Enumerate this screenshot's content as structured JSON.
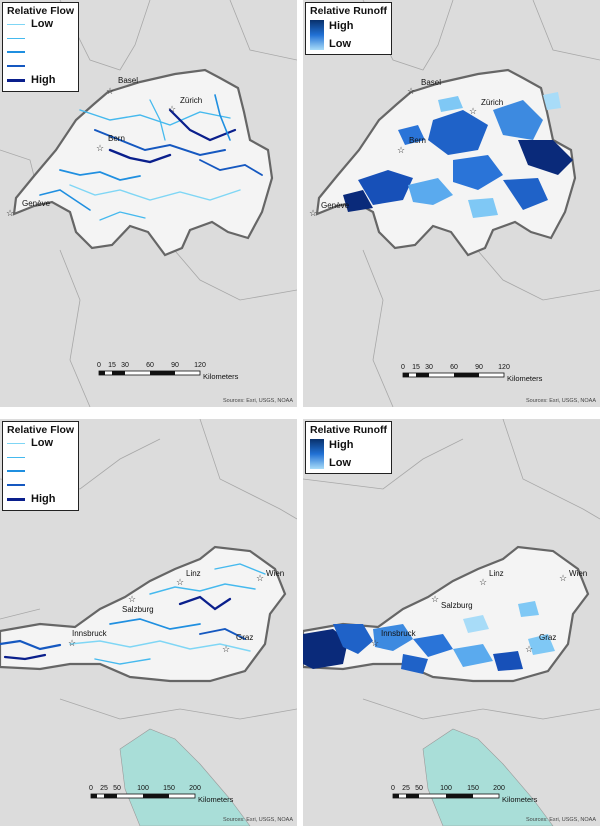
{
  "panels": {
    "ch_flow": {
      "legend_title": "Relative Flow",
      "legend_items": [
        "Low",
        "",
        "",
        "",
        "High"
      ],
      "legend_colors": [
        "#7fd6f5",
        "#45b9ee",
        "#1f8fe0",
        "#1558c0",
        "#0a1f8c"
      ],
      "cities": [
        "Basel",
        "Zürich",
        "Bern",
        "Genève"
      ],
      "scale_ticks": [
        "0",
        "15",
        "30",
        "60",
        "90",
        "120"
      ],
      "scale_unit": "Kilometers",
      "sources": "Sources: Esri, USGS, NOAA"
    },
    "ch_runoff": {
      "legend_title": "Relative Runoff",
      "legend_high": "High",
      "legend_low": "Low",
      "cities": [
        "Basel",
        "Zürich",
        "Bern",
        "Genève"
      ],
      "scale_ticks": [
        "0",
        "15",
        "30",
        "60",
        "90",
        "120"
      ],
      "scale_unit": "Kilometers",
      "sources": "Sources: Esri, USGS, NOAA"
    },
    "at_flow": {
      "legend_title": "Relative Flow",
      "legend_items": [
        "Low",
        "",
        "",
        "",
        "High"
      ],
      "legend_colors": [
        "#7fd6f5",
        "#45b9ee",
        "#1f8fe0",
        "#1558c0",
        "#0a1f8c"
      ],
      "cities": [
        "Linz",
        "Wien",
        "Salzburg",
        "Innsbruck",
        "Graz"
      ],
      "scale_ticks": [
        "0",
        "25",
        "50",
        "100",
        "150",
        "200"
      ],
      "scale_unit": "Kilometers",
      "sources": "Sources: Esri, USGS, NOAA"
    },
    "at_runoff": {
      "legend_title": "Relative Runoff",
      "legend_high": "High",
      "legend_low": "Low",
      "cities": [
        "Linz",
        "Wien",
        "Salzburg",
        "Innsbruck",
        "Graz"
      ],
      "scale_ticks": [
        "0",
        "25",
        "50",
        "100",
        "150",
        "200"
      ],
      "scale_unit": "Kilometers",
      "sources": "Sources: Esri, USGS, NOAA"
    }
  },
  "colors": {
    "background": "#dcdcdc",
    "country_fill": "#f4f4f4",
    "country_border": "#666666",
    "sea": "#a9ded8",
    "flow_high": "#0a1f8c",
    "flow_low": "#7fd6f5",
    "runoff_high": "#08306b",
    "runoff_low": "#a8dcf8"
  }
}
